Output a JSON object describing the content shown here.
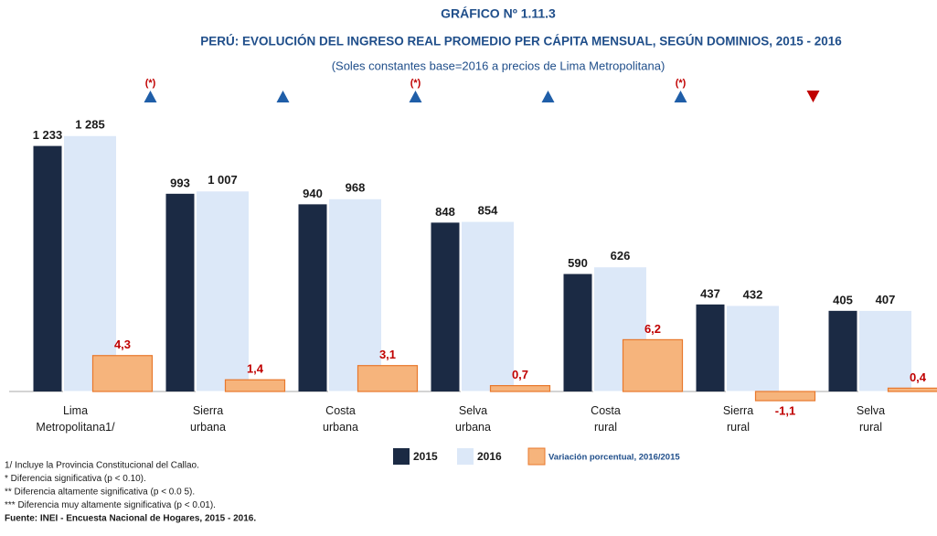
{
  "chart_data": {
    "type": "bar",
    "title": "GRÁFICO Nº  1.11.3",
    "subtitle": "PERÚ: EVOLUCIÓN DEL INGRESO REAL PROMEDIO PER CÁPITA MENSUAL, SEGÚN DOMINIOS, 2015 - 2016",
    "subtitle2": "(Soles constantes base=2016 a precios de Lima Metropolitana)",
    "categories": [
      "Lima Metropolitana1/",
      "Sierra urbana",
      "Costa urbana",
      "Selva urbana",
      "Costa rural",
      "Sierra rural",
      "Selva rural"
    ],
    "series": [
      {
        "name": "2015",
        "color": "#1b2a44",
        "values": [
          1233,
          993,
          940,
          848,
          590,
          437,
          405
        ],
        "value_labels": [
          "1 233",
          "993",
          "940",
          "848",
          "590",
          "437",
          "405"
        ]
      },
      {
        "name": "2016",
        "color": "#dce8f8",
        "values": [
          1285,
          1007,
          968,
          854,
          626,
          432,
          407
        ],
        "value_labels": [
          "1 285",
          "1 007",
          "968",
          "854",
          "626",
          "432",
          "407"
        ]
      },
      {
        "name": "Variación porcentual, 2016/2015",
        "color": "#f6b47c",
        "axis": "y2",
        "values": [
          4.3,
          1.4,
          3.1,
          0.7,
          6.2,
          -1.1,
          0.4
        ],
        "value_labels": [
          "4,3",
          "1,4",
          "3,1",
          "0,7",
          "6,2",
          "-1,1",
          "0,4"
        ]
      }
    ],
    "significance": [
      "(*)",
      null,
      "(*)",
      null,
      "(*)",
      null,
      null
    ],
    "trend": [
      "up",
      "up",
      "up",
      "up",
      "up",
      "down",
      "up"
    ],
    "trend_colors": {
      "up": "#1f5ea8",
      "down": "#c00000"
    },
    "ylim": [
      0,
      1300
    ],
    "y2lim": [
      0,
      31
    ],
    "footnotes": [
      "1/ Incluye la Provincia Constitucional del Callao.",
      "* Diferencia significativa (p <  0.10).",
      "** Diferencia altamente significativa (p < 0.0 5).",
      "*** Diferencia muy altamente significativa (p < 0.01).",
      "Fuente: INEI - Encuesta Nacional de Hogares, 2015 - 2016."
    ]
  }
}
